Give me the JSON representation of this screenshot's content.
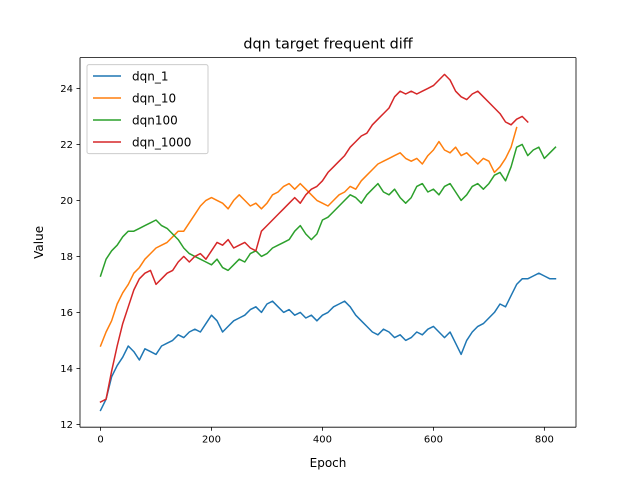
{
  "chart_data": {
    "type": "line",
    "title": "dqn target frequent diff",
    "xlabel": "Epoch",
    "ylabel": "Value",
    "xlim": [
      -37,
      857
    ],
    "ylim": [
      11.9,
      25.1
    ],
    "xticks": [
      0,
      200,
      400,
      600,
      800
    ],
    "yticks": [
      12,
      14,
      16,
      18,
      20,
      22,
      24
    ],
    "grid": false,
    "legend_position": "top-left",
    "series": [
      {
        "name": "dqn_1",
        "color": "#1f77b4",
        "x": [
          0,
          10,
          20,
          30,
          40,
          50,
          60,
          70,
          80,
          90,
          100,
          110,
          120,
          130,
          140,
          150,
          160,
          170,
          180,
          190,
          200,
          210,
          220,
          230,
          240,
          250,
          260,
          270,
          280,
          290,
          300,
          310,
          320,
          330,
          340,
          350,
          360,
          370,
          380,
          390,
          400,
          410,
          420,
          430,
          440,
          450,
          460,
          470,
          480,
          490,
          500,
          510,
          520,
          530,
          540,
          550,
          560,
          570,
          580,
          590,
          600,
          610,
          620,
          630,
          640,
          650,
          660,
          670,
          680,
          690,
          700,
          710,
          720,
          730,
          740,
          750,
          760,
          770,
          780,
          790,
          800,
          810,
          820
        ],
        "values": [
          12.5,
          12.9,
          13.7,
          14.1,
          14.4,
          14.8,
          14.6,
          14.3,
          14.7,
          14.6,
          14.5,
          14.8,
          14.9,
          15.0,
          15.2,
          15.1,
          15.3,
          15.4,
          15.3,
          15.6,
          15.9,
          15.7,
          15.3,
          15.5,
          15.7,
          15.8,
          15.9,
          16.1,
          16.2,
          16.0,
          16.3,
          16.4,
          16.2,
          16.0,
          16.1,
          15.9,
          16.0,
          15.8,
          15.9,
          15.7,
          15.9,
          16.0,
          16.2,
          16.3,
          16.4,
          16.2,
          15.9,
          15.7,
          15.5,
          15.3,
          15.2,
          15.4,
          15.3,
          15.1,
          15.2,
          15.0,
          15.1,
          15.3,
          15.2,
          15.4,
          15.5,
          15.3,
          15.1,
          15.3,
          14.9,
          14.5,
          15.0,
          15.3,
          15.5,
          15.6,
          15.8,
          16.0,
          16.3,
          16.2,
          16.6,
          17.0,
          17.2,
          17.2,
          17.3,
          17.4,
          17.3,
          17.2,
          17.2
        ]
      },
      {
        "name": "dqn_10",
        "color": "#ff7f0e",
        "x": [
          0,
          10,
          20,
          30,
          40,
          50,
          60,
          70,
          80,
          90,
          100,
          110,
          120,
          130,
          140,
          150,
          160,
          170,
          180,
          190,
          200,
          210,
          220,
          230,
          240,
          250,
          260,
          270,
          280,
          290,
          300,
          310,
          320,
          330,
          340,
          350,
          360,
          370,
          380,
          390,
          400,
          410,
          420,
          430,
          440,
          450,
          460,
          470,
          480,
          490,
          500,
          510,
          520,
          530,
          540,
          550,
          560,
          570,
          580,
          590,
          600,
          610,
          620,
          630,
          640,
          650,
          660,
          670,
          680,
          690,
          700,
          710,
          720,
          730,
          740,
          750
        ],
        "values": [
          14.8,
          15.3,
          15.7,
          16.3,
          16.7,
          17.0,
          17.4,
          17.6,
          17.9,
          18.1,
          18.3,
          18.4,
          18.5,
          18.7,
          18.9,
          18.9,
          19.2,
          19.5,
          19.8,
          20.0,
          20.1,
          20.0,
          19.9,
          19.7,
          20.0,
          20.2,
          20.0,
          19.8,
          19.9,
          19.7,
          19.9,
          20.2,
          20.3,
          20.5,
          20.6,
          20.4,
          20.6,
          20.4,
          20.2,
          20.0,
          19.9,
          19.8,
          20.0,
          20.2,
          20.3,
          20.5,
          20.4,
          20.7,
          20.9,
          21.1,
          21.3,
          21.4,
          21.5,
          21.6,
          21.7,
          21.5,
          21.4,
          21.5,
          21.3,
          21.6,
          21.8,
          22.1,
          21.8,
          21.7,
          21.9,
          21.6,
          21.7,
          21.5,
          21.3,
          21.5,
          21.4,
          21.0,
          21.2,
          21.5,
          21.9,
          22.6
        ]
      },
      {
        "name": "dqn100",
        "color": "#2ca02c",
        "x": [
          0,
          10,
          20,
          30,
          40,
          50,
          60,
          70,
          80,
          90,
          100,
          110,
          120,
          130,
          140,
          150,
          160,
          170,
          180,
          190,
          200,
          210,
          220,
          230,
          240,
          250,
          260,
          270,
          280,
          290,
          300,
          310,
          320,
          330,
          340,
          350,
          360,
          370,
          380,
          390,
          400,
          410,
          420,
          430,
          440,
          450,
          460,
          470,
          480,
          490,
          500,
          510,
          520,
          530,
          540,
          550,
          560,
          570,
          580,
          590,
          600,
          610,
          620,
          630,
          640,
          650,
          660,
          670,
          680,
          690,
          700,
          710,
          720,
          730,
          740,
          750,
          760,
          770,
          780,
          790,
          800,
          810,
          820
        ],
        "values": [
          17.3,
          17.9,
          18.2,
          18.4,
          18.7,
          18.9,
          18.9,
          19.0,
          19.1,
          19.2,
          19.3,
          19.1,
          19.0,
          18.8,
          18.6,
          18.3,
          18.1,
          18.0,
          17.9,
          17.8,
          17.7,
          17.9,
          17.6,
          17.5,
          17.7,
          17.9,
          17.8,
          18.1,
          18.2,
          18.0,
          18.1,
          18.3,
          18.4,
          18.5,
          18.6,
          18.9,
          19.1,
          18.8,
          18.6,
          18.8,
          19.3,
          19.4,
          19.6,
          19.8,
          20.0,
          20.2,
          20.1,
          19.9,
          20.2,
          20.4,
          20.6,
          20.3,
          20.2,
          20.4,
          20.1,
          19.9,
          20.1,
          20.5,
          20.6,
          20.3,
          20.4,
          20.2,
          20.5,
          20.6,
          20.3,
          20.0,
          20.2,
          20.5,
          20.6,
          20.4,
          20.6,
          20.9,
          21.0,
          20.7,
          21.2,
          21.9,
          22.0,
          21.6,
          21.8,
          21.9,
          21.5,
          21.7,
          21.9
        ]
      },
      {
        "name": "dqn_1000",
        "color": "#d62728",
        "x": [
          0,
          10,
          20,
          30,
          40,
          50,
          60,
          70,
          80,
          90,
          100,
          110,
          120,
          130,
          140,
          150,
          160,
          170,
          180,
          190,
          200,
          210,
          220,
          230,
          240,
          250,
          260,
          270,
          280,
          290,
          300,
          310,
          320,
          330,
          340,
          350,
          360,
          370,
          380,
          390,
          400,
          410,
          420,
          430,
          440,
          450,
          460,
          470,
          480,
          490,
          500,
          510,
          520,
          530,
          540,
          550,
          560,
          570,
          580,
          590,
          600,
          610,
          620,
          630,
          640,
          650,
          660,
          670,
          680,
          690,
          700,
          710,
          720,
          730,
          740,
          750,
          760,
          770
        ],
        "values": [
          12.8,
          12.9,
          13.9,
          14.8,
          15.6,
          16.2,
          16.8,
          17.2,
          17.4,
          17.5,
          17.0,
          17.2,
          17.4,
          17.5,
          17.8,
          18.0,
          17.8,
          18.0,
          18.1,
          17.9,
          18.2,
          18.5,
          18.4,
          18.6,
          18.3,
          18.4,
          18.5,
          18.3,
          18.2,
          18.9,
          19.1,
          19.3,
          19.5,
          19.7,
          19.9,
          20.1,
          19.9,
          20.2,
          20.4,
          20.5,
          20.7,
          21.0,
          21.2,
          21.4,
          21.6,
          21.9,
          22.1,
          22.3,
          22.4,
          22.7,
          22.9,
          23.1,
          23.3,
          23.7,
          23.9,
          23.8,
          23.9,
          23.8,
          23.9,
          24.0,
          24.1,
          24.3,
          24.5,
          24.3,
          23.9,
          23.7,
          23.6,
          23.8,
          23.9,
          23.7,
          23.5,
          23.3,
          23.1,
          22.8,
          22.7,
          22.9,
          23.0,
          22.8
        ]
      }
    ]
  }
}
